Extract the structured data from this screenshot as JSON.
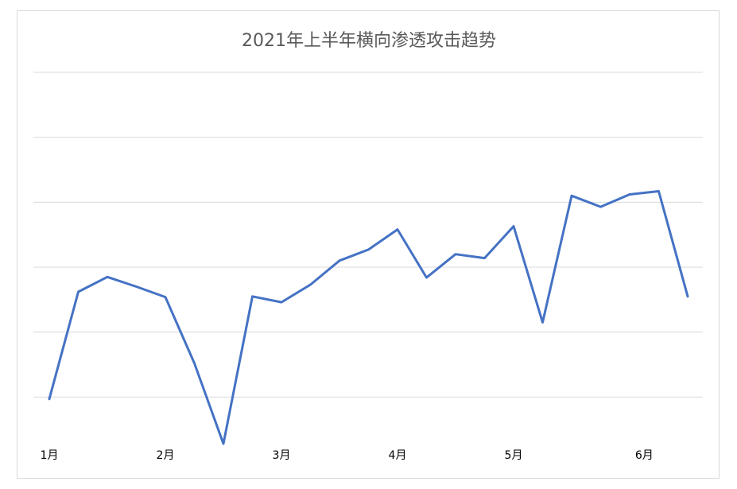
{
  "chart_data": {
    "type": "line",
    "title": "2021年上半年横向渗透攻击趋势",
    "xlabel": "",
    "ylabel": "",
    "x_tick_labels": [
      "1月",
      "2月",
      "3月",
      "4月",
      "5月",
      "6月"
    ],
    "x_tick_positions": [
      0,
      4,
      8,
      12,
      16,
      20.5
    ],
    "ylim": [
      0,
      6
    ],
    "y_gridlines": [
      1,
      2,
      3,
      4,
      5,
      6
    ],
    "grid": true,
    "legend": "none",
    "series": [
      {
        "color": "#4472c4",
        "x": [
          0,
          1,
          2,
          3,
          4,
          5,
          6,
          7,
          8,
          9,
          10,
          11,
          12,
          13,
          14,
          15,
          16,
          17,
          18,
          19,
          20,
          21,
          22
        ],
        "values": [
          0.97,
          2.62,
          2.85,
          2.7,
          2.54,
          1.52,
          0.28,
          2.55,
          2.46,
          2.73,
          3.1,
          3.27,
          3.58,
          2.84,
          3.2,
          3.14,
          3.63,
          2.15,
          4.1,
          3.93,
          4.12,
          4.17,
          2.55
        ]
      }
    ]
  }
}
